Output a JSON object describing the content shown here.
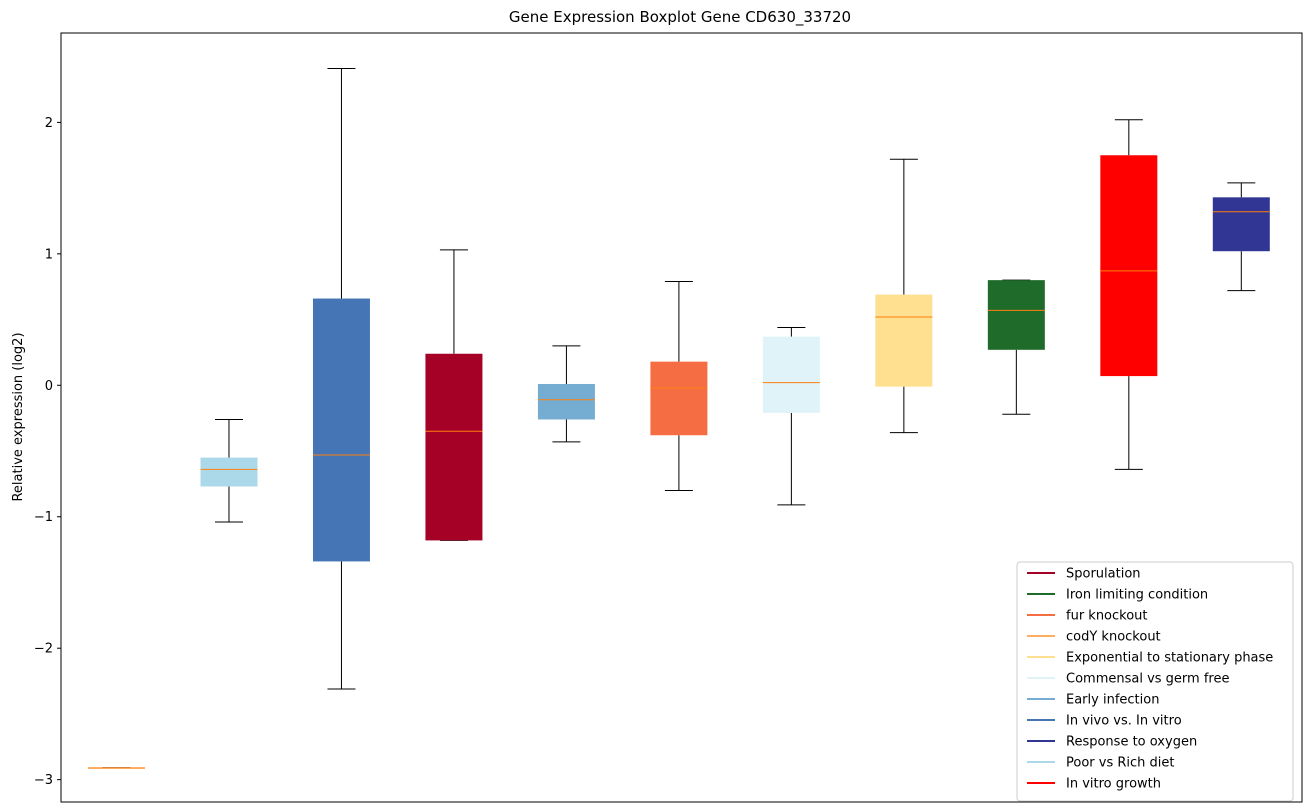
{
  "chart_data": {
    "type": "boxplot",
    "title": "Gene Expression Boxplot Gene CD630_33720",
    "xlabel": "",
    "ylabel": "Relative expression (log2)",
    "ylim": [
      -3.17,
      2.68
    ],
    "yticks": [
      -3,
      -2,
      -1,
      0,
      1,
      2
    ],
    "ytick_labels": [
      "−3",
      "−2",
      "−1",
      "0",
      "1",
      "2"
    ],
    "grid": false,
    "legend_position": "bottom-right",
    "median_color": "#ff7f0e",
    "series": [
      {
        "name": "codY knockout",
        "color": "#fdae61",
        "whisker_low": -2.91,
        "q1": -2.91,
        "median": -2.91,
        "q3": -2.91,
        "whisker_high": -2.91
      },
      {
        "name": "Poor vs Rich diet",
        "color": "#abd9e9",
        "whisker_low": -1.04,
        "q1": -0.77,
        "median": -0.64,
        "q3": -0.55,
        "whisker_high": -0.26
      },
      {
        "name": "In vivo vs. In vitro",
        "color": "#4575b4",
        "whisker_low": -2.31,
        "q1": -1.34,
        "median": -0.53,
        "q3": 0.66,
        "whisker_high": 2.41
      },
      {
        "name": "Sporulation",
        "color": "#a50026",
        "whisker_low": -1.18,
        "q1": -1.18,
        "median": -0.35,
        "q3": 0.24,
        "whisker_high": 1.03
      },
      {
        "name": "Early infection",
        "color": "#74add1",
        "whisker_low": -0.43,
        "q1": -0.26,
        "median": -0.11,
        "q3": 0.01,
        "whisker_high": 0.3
      },
      {
        "name": "fur knockout",
        "color": "#f46d43",
        "whisker_low": -0.8,
        "q1": -0.38,
        "median": -0.02,
        "q3": 0.18,
        "whisker_high": 0.79
      },
      {
        "name": "Commensal vs germ free",
        "color": "#e0f3f8",
        "whisker_low": -0.91,
        "q1": -0.21,
        "median": 0.02,
        "q3": 0.37,
        "whisker_high": 0.44
      },
      {
        "name": "Exponential to stationary phase",
        "color": "#fee090",
        "whisker_low": -0.36,
        "q1": -0.01,
        "median": 0.52,
        "q3": 0.69,
        "whisker_high": 1.72
      },
      {
        "name": "Iron limiting condition",
        "color": "#1f6b2a",
        "whisker_low": -0.22,
        "q1": 0.27,
        "median": 0.57,
        "q3": 0.8,
        "whisker_high": 0.8
      },
      {
        "name": "In vitro growth",
        "color": "#ff0000",
        "whisker_low": -0.64,
        "q1": 0.07,
        "median": 0.87,
        "q3": 1.75,
        "whisker_high": 2.02
      },
      {
        "name": "Response to oxygen",
        "color": "#313695",
        "whisker_low": 0.72,
        "q1": 1.02,
        "median": 1.32,
        "q3": 1.43,
        "whisker_high": 1.54
      }
    ],
    "legend": [
      {
        "label": "Sporulation",
        "color": "#a50026"
      },
      {
        "label": "Iron limiting condition",
        "color": "#1f6b2a"
      },
      {
        "label": "fur knockout",
        "color": "#f46d43"
      },
      {
        "label": "codY knockout",
        "color": "#fdae61"
      },
      {
        "label": "Exponential to stationary phase",
        "color": "#fee090"
      },
      {
        "label": "Commensal vs germ free",
        "color": "#e0f3f8"
      },
      {
        "label": "Early infection",
        "color": "#74add1"
      },
      {
        "label": "In vivo vs. In vitro",
        "color": "#4575b4"
      },
      {
        "label": "Response to oxygen",
        "color": "#313695"
      },
      {
        "label": "Poor vs Rich diet",
        "color": "#abd9e9"
      },
      {
        "label": "In vitro growth",
        "color": "#ff0000"
      }
    ]
  }
}
